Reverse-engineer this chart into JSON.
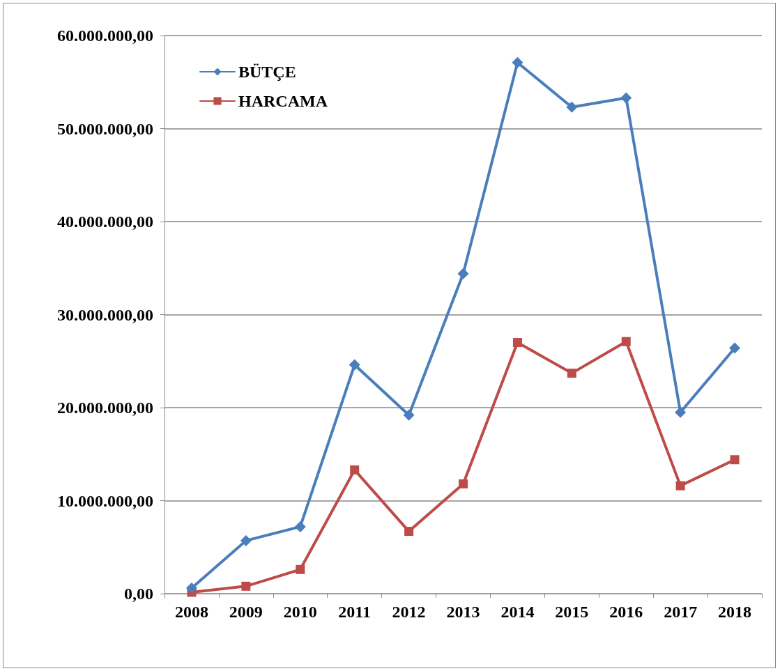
{
  "chart_data": {
    "type": "line",
    "categories": [
      "2008",
      "2009",
      "2010",
      "2011",
      "2012",
      "2013",
      "2014",
      "2015",
      "2016",
      "2017",
      "2018"
    ],
    "series": [
      {
        "name": "BÜTÇE",
        "color": "#4a7ebb",
        "marker": "diamond",
        "values": [
          600000,
          5700000,
          7200000,
          24600000,
          19200000,
          34400000,
          57100000,
          52300000,
          53300000,
          19500000,
          26400000
        ]
      },
      {
        "name": "HARCAMA",
        "color": "#be4b48",
        "marker": "square",
        "values": [
          150000,
          800000,
          2600000,
          13300000,
          6700000,
          11800000,
          27000000,
          23700000,
          27100000,
          11600000,
          14400000
        ]
      }
    ],
    "ylim": [
      0,
      60000000
    ],
    "yticks": [
      {
        "value": 0,
        "label": "0,00"
      },
      {
        "value": 10000000,
        "label": "10.000.000,00"
      },
      {
        "value": 20000000,
        "label": "20.000.000,00"
      },
      {
        "value": 30000000,
        "label": "30.000.000,00"
      },
      {
        "value": 40000000,
        "label": "40.000.000,00"
      },
      {
        "value": 50000000,
        "label": "50.000.000,00"
      },
      {
        "value": 60000000,
        "label": "60.000.000,00"
      }
    ],
    "grid": "y",
    "legend": "top left"
  }
}
